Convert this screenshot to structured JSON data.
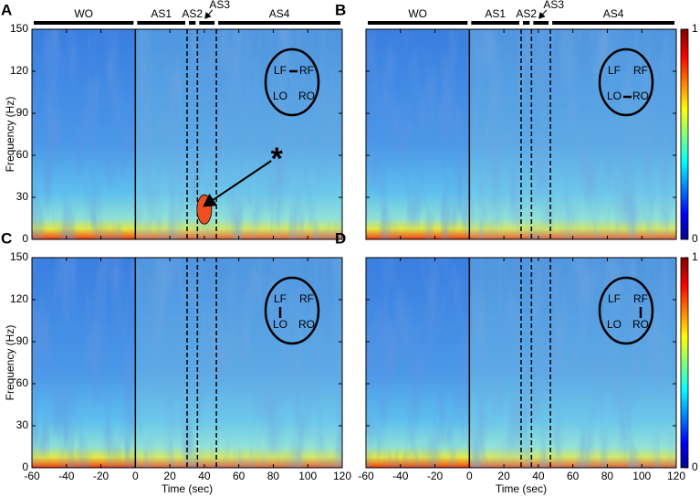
{
  "chart_data": [
    {
      "type": "heatmap",
      "panel_label": "A",
      "ylabel": "Frequency (Hz)",
      "xlim": [
        -60,
        120
      ],
      "xticks": [
        -60,
        -40,
        -20,
        0,
        20,
        40,
        60,
        80,
        100,
        120
      ],
      "ylim": [
        0,
        150
      ],
      "yticks": [
        0,
        30,
        60,
        90,
        120,
        150
      ],
      "phases": [
        {
          "label": "WO",
          "start": -60,
          "end": 0
        },
        {
          "label": "AS1",
          "start": 0,
          "end": 30
        },
        {
          "label": "AS2",
          "start": 30,
          "end": 36
        },
        {
          "label": "AS3",
          "start": 36,
          "end": 47,
          "callout": true
        },
        {
          "label": "AS4",
          "start": 47,
          "end": 120
        }
      ],
      "electrodes": [
        "LF",
        "RF",
        "LO",
        "RO"
      ],
      "connection": [
        0,
        1
      ],
      "annotation": {
        "text": "*",
        "x": 82,
        "y": 60,
        "arrow_to": [
          40,
          24
        ]
      }
    },
    {
      "type": "heatmap",
      "panel_label": "B",
      "xlim": [
        -60,
        120
      ],
      "xticks": [
        -60,
        -40,
        -20,
        0,
        20,
        40,
        60,
        80,
        100,
        120
      ],
      "ylim": [
        0,
        150
      ],
      "yticks": [
        0,
        30,
        60,
        90,
        120,
        150
      ],
      "phases": [
        {
          "label": "WO",
          "start": -60,
          "end": 0
        },
        {
          "label": "AS1",
          "start": 0,
          "end": 30
        },
        {
          "label": "AS2",
          "start": 30,
          "end": 36
        },
        {
          "label": "AS3",
          "start": 36,
          "end": 47,
          "callout": true
        },
        {
          "label": "AS4",
          "start": 47,
          "end": 120
        }
      ],
      "electrodes": [
        "LF",
        "RF",
        "LO",
        "RO"
      ],
      "connection": [
        2,
        3
      ],
      "colorbar": {
        "ylim": [
          0,
          1
        ],
        "yticks": [
          0,
          1
        ]
      }
    },
    {
      "type": "heatmap",
      "panel_label": "C",
      "ylabel": "Frequency (Hz)",
      "xlabel": "Time (sec)",
      "xlim": [
        -60,
        120
      ],
      "xticks": [
        -60,
        -40,
        -20,
        0,
        20,
        40,
        60,
        80,
        100,
        120
      ],
      "ylim": [
        0,
        150
      ],
      "yticks": [
        0,
        30,
        60,
        90,
        120,
        150
      ],
      "boundaries": [
        0,
        30,
        36,
        47
      ],
      "electrodes": [
        "LF",
        "RF",
        "LO",
        "RO"
      ],
      "connection": [
        0,
        2
      ]
    },
    {
      "type": "heatmap",
      "panel_label": "D",
      "xlabel": "Time (sec)",
      "xlim": [
        -60,
        120
      ],
      "xticks": [
        -60,
        -40,
        -20,
        0,
        20,
        40,
        60,
        80,
        100,
        120
      ],
      "ylim": [
        0,
        150
      ],
      "yticks": [
        0,
        30,
        60,
        90,
        120,
        150
      ],
      "boundaries": [
        0,
        30,
        36,
        47
      ],
      "electrodes": [
        "LF",
        "RF",
        "LO",
        "RO"
      ],
      "connection": [
        1,
        3
      ],
      "colorbar": {
        "ylim": [
          0,
          1
        ],
        "yticks": [
          0,
          1
        ]
      }
    }
  ]
}
